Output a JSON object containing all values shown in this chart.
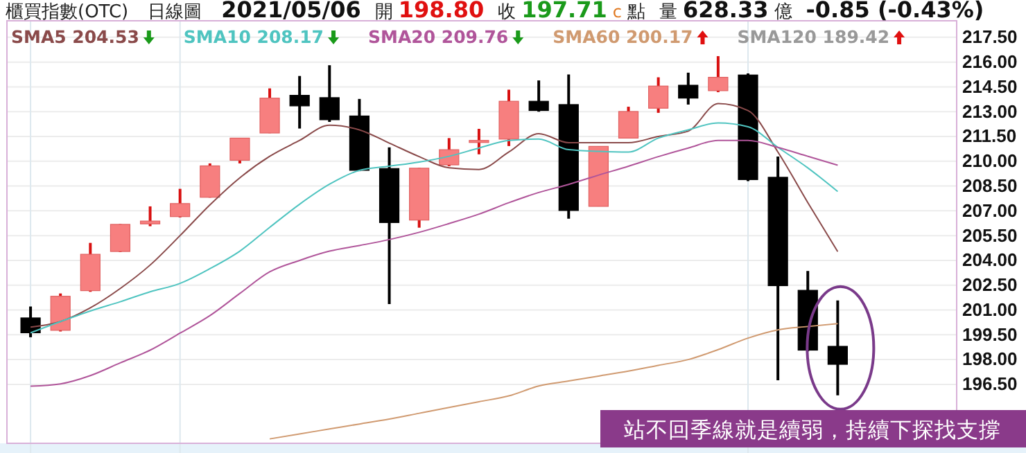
{
  "chart_data": {
    "type": "candlestick",
    "title": "櫃買指數(OTC)",
    "subtitle": "日線圖",
    "categories": [
      null,
      null,
      null,
      null,
      null,
      null,
      null,
      null,
      null,
      null,
      null,
      null,
      null,
      null,
      null,
      null,
      null,
      null,
      null,
      null,
      null,
      null,
      null,
      null,
      null,
      null,
      null,
      null
    ],
    "ohlc": [
      [
        200.52,
        201.21,
        199.35,
        199.62
      ],
      [
        199.77,
        202.0,
        199.7,
        201.83
      ],
      [
        202.17,
        205.06,
        202.1,
        204.37
      ],
      [
        204.54,
        206.2,
        204.5,
        206.18
      ],
      [
        206.21,
        207.27,
        206.07,
        206.38
      ],
      [
        206.65,
        208.33,
        206.6,
        207.44
      ],
      [
        207.82,
        209.87,
        207.8,
        209.72
      ],
      [
        210.06,
        211.4,
        209.87,
        211.4
      ],
      [
        211.71,
        214.41,
        211.7,
        213.82
      ],
      [
        213.99,
        215.16,
        211.98,
        213.35
      ],
      [
        213.85,
        215.81,
        212.38,
        212.51
      ],
      [
        212.74,
        213.77,
        209.4,
        209.45
      ],
      [
        209.56,
        210.84,
        201.36,
        206.29
      ],
      [
        206.44,
        209.6,
        205.98,
        209.58
      ],
      [
        209.78,
        211.4,
        209.7,
        210.7
      ],
      [
        211.15,
        211.96,
        210.42,
        211.26
      ],
      [
        211.34,
        214.33,
        210.92,
        213.63
      ],
      [
        213.63,
        214.89,
        213.0,
        213.07
      ],
      [
        213.43,
        215.25,
        206.52,
        207.02
      ],
      [
        207.27,
        210.9,
        207.27,
        210.9
      ],
      [
        211.4,
        213.3,
        211.4,
        213.01
      ],
      [
        213.21,
        215.08,
        212.93,
        214.55
      ],
      [
        214.6,
        215.36,
        213.43,
        213.82
      ],
      [
        214.27,
        216.36,
        214.18,
        215.08
      ],
      [
        215.22,
        215.31,
        208.8,
        208.89
      ],
      [
        209.03,
        210.28,
        196.75,
        202.47
      ],
      [
        202.19,
        203.36,
        198.5,
        198.57
      ],
      [
        198.8,
        201.58,
        195.83,
        197.71
      ]
    ],
    "series": [
      {
        "name": "SMA5 204.53",
        "type": "line",
        "color": "#8a4a4a",
        "values": [
          199.96,
          200.3,
          201.13,
          202.3,
          203.72,
          205.5,
          207.36,
          209.0,
          210.3,
          211.26,
          212.18,
          211.9,
          211.1,
          210.28,
          209.6,
          209.5,
          210.56,
          211.67,
          211.12,
          211.12,
          211.12,
          211.5,
          211.82,
          213.49,
          213.07,
          210.56,
          207.5,
          204.53
        ]
      },
      {
        "name": "SMA10 208.17",
        "type": "line",
        "color": "#4fc4c0",
        "values": [
          199.62,
          200.3,
          200.94,
          201.5,
          202.1,
          202.61,
          203.5,
          204.56,
          206.0,
          207.4,
          208.61,
          209.45,
          209.7,
          209.95,
          210.3,
          210.8,
          211.26,
          211.34,
          210.7,
          210.6,
          210.56,
          211.4,
          211.9,
          212.32,
          212.09,
          210.84,
          209.6,
          208.17
        ]
      },
      {
        "name": "SMA20 209.76",
        "type": "line",
        "color": "#b0559a",
        "values": [
          196.39,
          196.53,
          197.03,
          197.8,
          198.57,
          199.6,
          200.66,
          202.0,
          203.31,
          204.0,
          204.56,
          204.9,
          205.26,
          205.7,
          206.23,
          206.8,
          207.49,
          208.11,
          208.6,
          209.16,
          209.7,
          210.28,
          210.8,
          211.26,
          211.26,
          210.84,
          210.3,
          209.76
        ]
      },
      {
        "name": "SMA60 200.17",
        "type": "line",
        "color": "#d09a70",
        "values": [
          null,
          null,
          null,
          null,
          null,
          null,
          null,
          null,
          193.2,
          193.5,
          193.8,
          194.1,
          194.4,
          194.75,
          195.1,
          195.45,
          195.8,
          196.4,
          196.7,
          197.0,
          197.3,
          197.65,
          198.0,
          198.6,
          199.3,
          199.8,
          200.0,
          200.17
        ]
      }
    ],
    "ylim": [
      193.1,
      218.5
    ],
    "yticks": [
      {
        "value": 196.5,
        "label": "196.50"
      },
      {
        "value": 198,
        "label": "198.00"
      },
      {
        "value": 199.5,
        "label": "199.50"
      },
      {
        "value": 201,
        "label": "201.00"
      },
      {
        "value": 202.5,
        "label": "202.50"
      },
      {
        "value": 204,
        "label": "204.00"
      },
      {
        "value": 205.5,
        "label": "205.50"
      },
      {
        "value": 207,
        "label": "207.00"
      },
      {
        "value": 208.5,
        "label": "208.50"
      },
      {
        "value": 210,
        "label": "210.00"
      },
      {
        "value": 211.5,
        "label": "211.50"
      },
      {
        "value": 213,
        "label": "213.00"
      },
      {
        "value": 214.5,
        "label": "214.50"
      },
      {
        "value": 216,
        "label": "216.00"
      },
      {
        "value": 217.5,
        "label": "217.50"
      }
    ],
    "grid": true,
    "tick_labels": "y",
    "annotations": [
      "2021/05/06",
      "開",
      "198.80",
      "收",
      "197.71",
      "c",
      "點",
      "量",
      "628.33",
      "億",
      "-0.85 (-0.43%)",
      "SMA120 189.42",
      "站不回季線就是續弱，持續下探找支撐"
    ]
  }
}
